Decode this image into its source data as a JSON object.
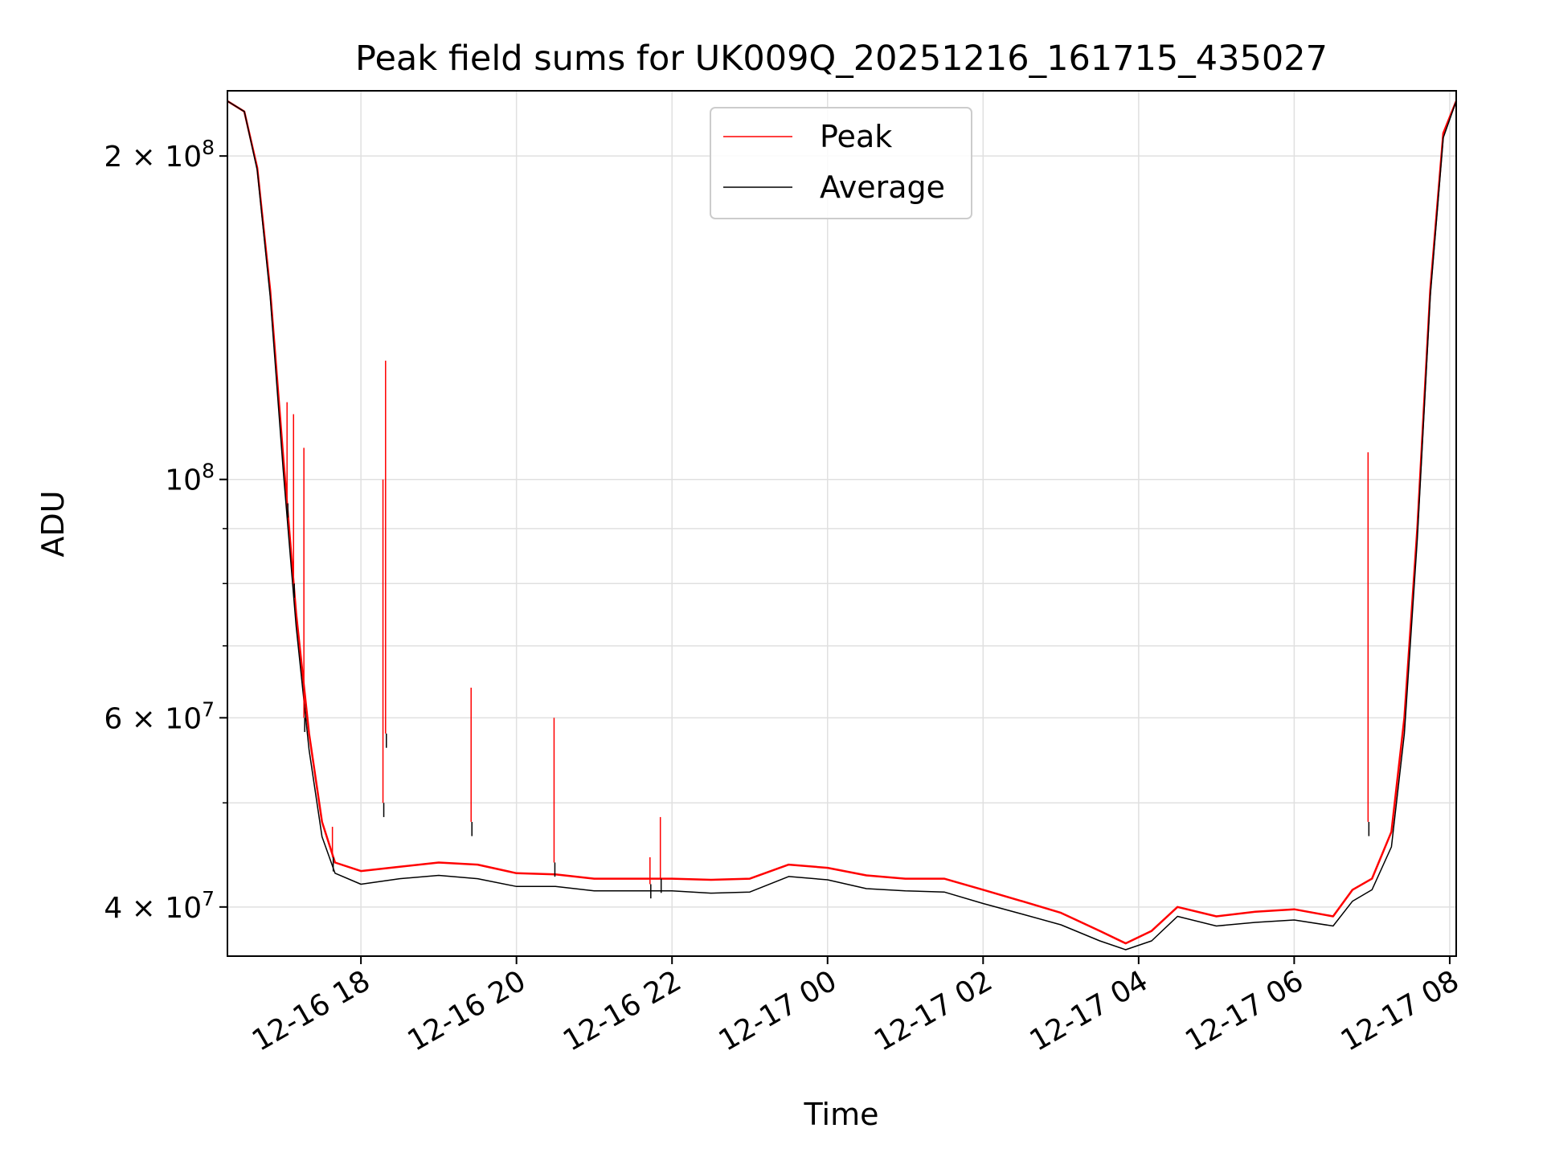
{
  "chart_data": {
    "type": "line",
    "title": "Peak field sums for UK009Q_20251216_161715_435027",
    "xlabel": "Time",
    "ylabel": "ADU",
    "yscale": "log",
    "ylim": [
      36000000,
      230000000
    ],
    "xlim": [
      "2025-12-16 16:17",
      "2025-12-17 08:05"
    ],
    "grid": true,
    "legend_position": "top-center",
    "x_ticks": [
      {
        "t": "2025-12-16 18:00",
        "label": "12-16 18"
      },
      {
        "t": "2025-12-16 20:00",
        "label": "12-16 20"
      },
      {
        "t": "2025-12-16 22:00",
        "label": "12-16 22"
      },
      {
        "t": "2025-12-17 00:00",
        "label": "12-17 00"
      },
      {
        "t": "2025-12-17 02:00",
        "label": "12-17 02"
      },
      {
        "t": "2025-12-17 04:00",
        "label": "12-17 04"
      },
      {
        "t": "2025-12-17 06:00",
        "label": "12-17 06"
      },
      {
        "t": "2025-12-17 08:00",
        "label": "12-17 08"
      }
    ],
    "y_ticks_major": [
      {
        "value": 40000000,
        "base": "4 × 10",
        "exp": "7"
      },
      {
        "value": 60000000,
        "base": "6 × 10",
        "exp": "7"
      },
      {
        "value": 100000000,
        "base": "10",
        "exp": "8"
      },
      {
        "value": 200000000,
        "base": "2 × 10",
        "exp": "8"
      }
    ],
    "y_ticks_minor": [
      50000000,
      70000000,
      80000000,
      90000000
    ],
    "series": [
      {
        "name": "Peak",
        "color": "#ff0000",
        "points": [
          [
            "2025-12-16 16:17",
            225000000
          ],
          [
            "2025-12-16 16:30",
            220000000
          ],
          [
            "2025-12-16 16:40",
            195000000
          ],
          [
            "2025-12-16 16:50",
            150000000
          ],
          [
            "2025-12-16 17:00",
            105000000
          ],
          [
            "2025-12-16 17:10",
            75000000
          ],
          [
            "2025-12-16 17:20",
            58000000
          ],
          [
            "2025-12-16 17:30",
            48000000
          ],
          [
            "2025-12-16 17:40",
            44000000
          ],
          [
            "2025-12-16 18:00",
            43200000
          ],
          [
            "2025-12-16 18:30",
            43600000
          ],
          [
            "2025-12-16 19:00",
            44000000
          ],
          [
            "2025-12-16 19:30",
            43800000
          ],
          [
            "2025-12-16 20:00",
            43000000
          ],
          [
            "2025-12-16 20:30",
            42900000
          ],
          [
            "2025-12-16 21:00",
            42500000
          ],
          [
            "2025-12-16 21:30",
            42500000
          ],
          [
            "2025-12-16 22:00",
            42500000
          ],
          [
            "2025-12-16 22:30",
            42400000
          ],
          [
            "2025-12-16 23:00",
            42500000
          ],
          [
            "2025-12-16 23:30",
            43800000
          ],
          [
            "2025-12-17 00:00",
            43500000
          ],
          [
            "2025-12-17 00:30",
            42800000
          ],
          [
            "2025-12-17 01:00",
            42500000
          ],
          [
            "2025-12-17 01:30",
            42500000
          ],
          [
            "2025-12-17 02:00",
            41500000
          ],
          [
            "2025-12-17 02:30",
            40500000
          ],
          [
            "2025-12-17 03:00",
            39500000
          ],
          [
            "2025-12-17 03:30",
            38000000
          ],
          [
            "2025-12-17 03:50",
            37000000
          ],
          [
            "2025-12-17 04:10",
            38000000
          ],
          [
            "2025-12-17 04:30",
            40000000
          ],
          [
            "2025-12-17 05:00",
            39200000
          ],
          [
            "2025-12-17 05:30",
            39600000
          ],
          [
            "2025-12-17 06:00",
            39800000
          ],
          [
            "2025-12-17 06:30",
            39200000
          ],
          [
            "2025-12-17 06:45",
            41500000
          ],
          [
            "2025-12-17 07:00",
            42500000
          ],
          [
            "2025-12-17 07:15",
            47000000
          ],
          [
            "2025-12-17 07:25",
            60000000
          ],
          [
            "2025-12-17 07:35",
            90000000
          ],
          [
            "2025-12-17 07:45",
            150000000
          ],
          [
            "2025-12-17 07:55",
            210000000
          ],
          [
            "2025-12-17 08:05",
            225000000
          ]
        ]
      },
      {
        "name": "Average",
        "color": "#000000",
        "points": [
          [
            "2025-12-16 16:17",
            225000000
          ],
          [
            "2025-12-16 16:30",
            220000000
          ],
          [
            "2025-12-16 16:40",
            194000000
          ],
          [
            "2025-12-16 16:50",
            148000000
          ],
          [
            "2025-12-16 17:00",
            102000000
          ],
          [
            "2025-12-16 17:10",
            73000000
          ],
          [
            "2025-12-16 17:20",
            56000000
          ],
          [
            "2025-12-16 17:30",
            46500000
          ],
          [
            "2025-12-16 17:40",
            43000000
          ],
          [
            "2025-12-16 18:00",
            42000000
          ],
          [
            "2025-12-16 18:30",
            42500000
          ],
          [
            "2025-12-16 19:00",
            42800000
          ],
          [
            "2025-12-16 19:30",
            42500000
          ],
          [
            "2025-12-16 20:00",
            41800000
          ],
          [
            "2025-12-16 20:30",
            41800000
          ],
          [
            "2025-12-16 21:00",
            41400000
          ],
          [
            "2025-12-16 21:30",
            41400000
          ],
          [
            "2025-12-16 22:00",
            41400000
          ],
          [
            "2025-12-16 22:30",
            41200000
          ],
          [
            "2025-12-16 23:00",
            41300000
          ],
          [
            "2025-12-16 23:30",
            42700000
          ],
          [
            "2025-12-17 00:00",
            42400000
          ],
          [
            "2025-12-17 00:30",
            41600000
          ],
          [
            "2025-12-17 01:00",
            41400000
          ],
          [
            "2025-12-17 01:30",
            41300000
          ],
          [
            "2025-12-17 02:00",
            40300000
          ],
          [
            "2025-12-17 02:30",
            39400000
          ],
          [
            "2025-12-17 03:00",
            38500000
          ],
          [
            "2025-12-17 03:30",
            37200000
          ],
          [
            "2025-12-17 03:50",
            36500000
          ],
          [
            "2025-12-17 04:10",
            37200000
          ],
          [
            "2025-12-17 04:30",
            39200000
          ],
          [
            "2025-12-17 05:00",
            38400000
          ],
          [
            "2025-12-17 05:30",
            38700000
          ],
          [
            "2025-12-17 06:00",
            38900000
          ],
          [
            "2025-12-17 06:30",
            38400000
          ],
          [
            "2025-12-17 06:45",
            40500000
          ],
          [
            "2025-12-17 07:00",
            41500000
          ],
          [
            "2025-12-17 07:15",
            45500000
          ],
          [
            "2025-12-17 07:25",
            58000000
          ],
          [
            "2025-12-17 07:35",
            88000000
          ],
          [
            "2025-12-17 07:45",
            148000000
          ],
          [
            "2025-12-17 07:55",
            208000000
          ],
          [
            "2025-12-17 08:05",
            225000000
          ]
        ]
      }
    ],
    "spikes": [
      {
        "t": "2025-12-16 17:03",
        "peak": 118000000,
        "average": 95000000
      },
      {
        "t": "2025-12-16 17:08",
        "peak": 115000000,
        "average": 80000000
      },
      {
        "t": "2025-12-16 17:16",
        "peak": 107000000,
        "average": 60000000
      },
      {
        "t": "2025-12-16 17:38",
        "peak": 47500000,
        "average": 44500000
      },
      {
        "t": "2025-12-16 18:17",
        "peak": 100000000,
        "average": 50000000
      },
      {
        "t": "2025-12-16 18:19",
        "peak": 129000000,
        "average": 58000000
      },
      {
        "t": "2025-12-16 19:25",
        "peak": 64000000,
        "average": 48000000
      },
      {
        "t": "2025-12-16 20:29",
        "peak": 60000000,
        "average": 44000000
      },
      {
        "t": "2025-12-16 21:43",
        "peak": 44500000,
        "average": 42000000
      },
      {
        "t": "2025-12-16 21:51",
        "peak": 48500000,
        "average": 42500000
      },
      {
        "t": "2025-12-17 06:57",
        "peak": 106000000,
        "average": 48000000
      }
    ]
  }
}
